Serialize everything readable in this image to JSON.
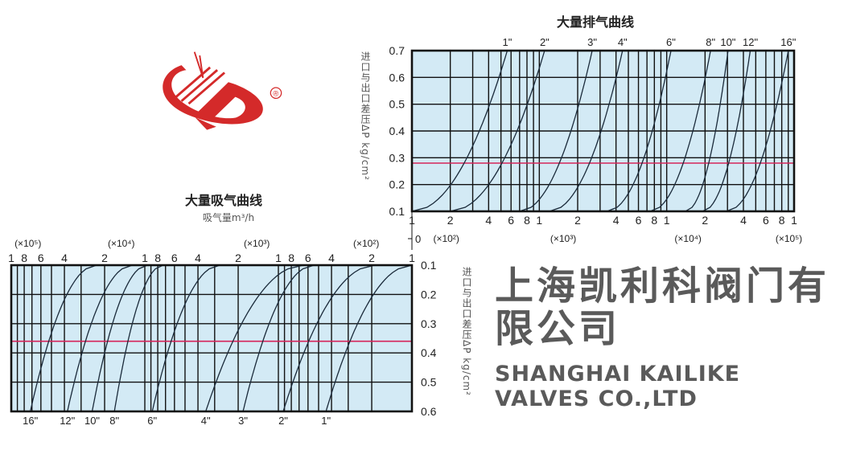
{
  "watermark": {
    "company_cn": "上海凯利科阀门有限公司",
    "company_en": "SHANGHAI KAILIKE VALVES CO.,LTD",
    "logo_mark": "®",
    "logo_color": "#d42a2a"
  },
  "chart_data": [
    {
      "type": "line",
      "title": "大量排气曲线",
      "ylabel": "进口与出口差压ΔP kg/cm²",
      "x_scale": "log",
      "xlim": [
        100,
        100000
      ],
      "ylim": [
        0.1,
        0.7
      ],
      "grid": true,
      "background_color": "#d3eaf5",
      "reference_line": {
        "y": 0.28,
        "color": "#d6245a"
      },
      "origin_label": "0",
      "y_ticks": [
        {
          "value": 0.1,
          "label": "0.1"
        },
        {
          "value": 0.2,
          "label": "0.2"
        },
        {
          "value": 0.3,
          "label": "0.3"
        },
        {
          "value": 0.4,
          "label": "0.4"
        },
        {
          "value": 0.5,
          "label": "0.5"
        },
        {
          "value": 0.6,
          "label": "0.6"
        },
        {
          "value": 0.7,
          "label": "0.7"
        }
      ],
      "x_ticks": [
        {
          "value": 100,
          "label": "1"
        },
        {
          "value": 200,
          "label": "2"
        },
        {
          "value": 400,
          "label": "4"
        },
        {
          "value": 600,
          "label": "6"
        },
        {
          "value": 800,
          "label": "8"
        },
        {
          "value": 1000,
          "label": "1"
        },
        {
          "value": 2000,
          "label": "2"
        },
        {
          "value": 4000,
          "label": "4"
        },
        {
          "value": 6000,
          "label": "6"
        },
        {
          "value": 8000,
          "label": "8"
        },
        {
          "value": 10000,
          "label": "1"
        },
        {
          "value": 20000,
          "label": "2"
        },
        {
          "value": 40000,
          "label": "4"
        },
        {
          "value": 60000,
          "label": "6"
        },
        {
          "value": 80000,
          "label": "8"
        },
        {
          "value": 100000,
          "label": "1"
        }
      ],
      "x_multipliers": [
        {
          "at": 186,
          "label": "(×10²)"
        },
        {
          "at": 1540,
          "label": "(×10³)"
        },
        {
          "at": 14700,
          "label": "(×10⁴)"
        },
        {
          "at": 91000,
          "label": "(×10⁵)"
        }
      ],
      "series": [
        {
          "name": "1\"",
          "points": [
            [
              100,
              0.1
            ],
            [
              560,
              0.7
            ]
          ]
        },
        {
          "name": "2\"",
          "points": [
            [
              200,
              0.1
            ],
            [
              1100,
              0.7
            ]
          ]
        },
        {
          "name": "3\"",
          "points": [
            [
              700,
              0.1
            ],
            [
              2600,
              0.7
            ]
          ]
        },
        {
          "name": "4\"",
          "points": [
            [
              1200,
              0.1
            ],
            [
              4500,
              0.7
            ]
          ]
        },
        {
          "name": "6\"",
          "points": [
            [
              3400,
              0.1
            ],
            [
              10800,
              0.7
            ]
          ]
        },
        {
          "name": "8\"",
          "points": [
            [
              7400,
              0.1
            ],
            [
              22100,
              0.7
            ]
          ]
        },
        {
          "name": "10\"",
          "points": [
            [
              14000,
              0.1
            ],
            [
              30300,
              0.7
            ]
          ]
        },
        {
          "name": "12\"",
          "points": [
            [
              19100,
              0.1
            ],
            [
              45300,
              0.7
            ]
          ]
        },
        {
          "name": "16\"",
          "points": [
            [
              29400,
              0.1
            ],
            [
              90100,
              0.7
            ]
          ]
        }
      ]
    },
    {
      "type": "line",
      "title": "大量吸气曲线",
      "subtitle": "吸气量m³/h",
      "ylabel": "进口与出口差压ΔP kg/cm²",
      "x_scale": "log",
      "x_reversed": true,
      "y_reversed": true,
      "xlim": [
        100000,
        100
      ],
      "ylim": [
        0.1,
        0.6
      ],
      "grid": true,
      "background_color": "#d3eaf5",
      "reference_line": {
        "y": 0.36,
        "color": "#d6245a"
      },
      "y_ticks": [
        {
          "value": 0.1,
          "label": "0.1"
        },
        {
          "value": 0.2,
          "label": "0.2"
        },
        {
          "value": 0.3,
          "label": "0.3"
        },
        {
          "value": 0.4,
          "label": "0.4"
        },
        {
          "value": 0.5,
          "label": "0.5"
        },
        {
          "value": 0.6,
          "label": "0.6"
        }
      ],
      "x_ticks": [
        {
          "value": 100000,
          "label": "1"
        },
        {
          "value": 80000,
          "label": "8"
        },
        {
          "value": 60000,
          "label": "6"
        },
        {
          "value": 40000,
          "label": "4"
        },
        {
          "value": 20000,
          "label": "2"
        },
        {
          "value": 10000,
          "label": "1"
        },
        {
          "value": 8000,
          "label": "8"
        },
        {
          "value": 6000,
          "label": "6"
        },
        {
          "value": 4000,
          "label": "4"
        },
        {
          "value": 2000,
          "label": "2"
        },
        {
          "value": 1000,
          "label": "1"
        },
        {
          "value": 800,
          "label": "8"
        },
        {
          "value": 600,
          "label": "6"
        },
        {
          "value": 400,
          "label": "4"
        },
        {
          "value": 200,
          "label": "2"
        },
        {
          "value": 100,
          "label": "1"
        }
      ],
      "x_multipliers": [
        {
          "at": 75000,
          "label": "(×10⁵)"
        },
        {
          "at": 15000,
          "label": "(×10⁴)"
        },
        {
          "at": 1450,
          "label": "(×10³)"
        },
        {
          "at": 220,
          "label": "(×10²)"
        }
      ],
      "series": [
        {
          "name": "16\"",
          "points": [
            [
              23000,
              0.1
            ],
            [
              72000,
              0.6
            ]
          ]
        },
        {
          "name": "12\"",
          "points": [
            [
              12400,
              0.1
            ],
            [
              38000,
              0.6
            ]
          ]
        },
        {
          "name": "10\"",
          "points": [
            [
              9550,
              0.1
            ],
            [
              24800,
              0.6
            ]
          ]
        },
        {
          "name": "8\"",
          "points": [
            [
              7300,
              0.1
            ],
            [
              16900,
              0.6
            ]
          ]
        },
        {
          "name": "6\"",
          "points": [
            [
              2740,
              0.1
            ],
            [
              8800,
              0.6
            ]
          ]
        },
        {
          "name": "4\"",
          "points": [
            [
              650,
              0.1
            ],
            [
              3500,
              0.6
            ]
          ]
        },
        {
          "name": "3\"",
          "points": [
            [
              540,
              0.1
            ],
            [
              1840,
              0.6
            ]
          ]
        },
        {
          "name": "2\"",
          "points": [
            [
              190,
              0.1
            ],
            [
              920,
              0.6
            ]
          ]
        },
        {
          "name": "1\"",
          "points": [
            [
              100,
              0.1
            ],
            [
              440,
              0.6
            ]
          ]
        }
      ]
    }
  ]
}
